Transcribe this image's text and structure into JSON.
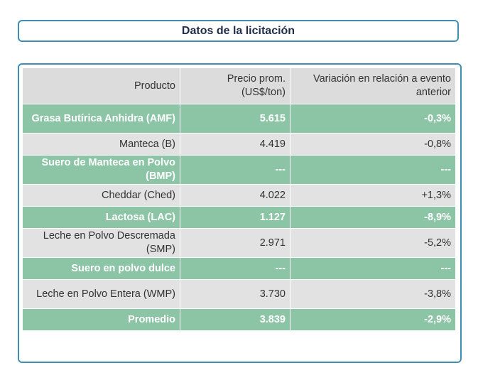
{
  "header": {
    "title": "Datos de la licitación"
  },
  "table": {
    "columns": [
      "Producto",
      "Precio prom. (US$/ton)",
      "Variación en relación a evento anterior"
    ],
    "rows": [
      {
        "product": "Grasa Butírica Anhidra (AMF)",
        "price": "5.615",
        "change": "-0,3%",
        "highlight": true
      },
      {
        "product": "Manteca (B)",
        "price": "4.419",
        "change": "-0,8%",
        "highlight": false
      },
      {
        "product": "Suero de Manteca en Polvo (BMP)",
        "price": "---",
        "change": "---",
        "highlight": true
      },
      {
        "product": "Cheddar (Ched)",
        "price": "4.022",
        "change": "+1,3%",
        "highlight": false
      },
      {
        "product": "Lactosa (LAC)",
        "price": "1.127",
        "change": "-8,9%",
        "highlight": true
      },
      {
        "product": "Leche en Polvo Descremada (SMP)",
        "price": "2.971",
        "change": "-5,2%",
        "highlight": false
      },
      {
        "product": "Suero en polvo dulce",
        "price": "---",
        "change": "---",
        "highlight": true
      },
      {
        "product": "Leche en Polvo Entera (WMP)",
        "price": "3.730",
        "change": "-3,8%",
        "highlight": false
      },
      {
        "product": "Promedio",
        "price": "3.839",
        "change": "-2,9%",
        "highlight": true
      }
    ]
  },
  "colors": {
    "highlight_row": "#8cc4a6",
    "plain_row": "#e2e2e2",
    "header_row": "#dcdcdc",
    "border": "#3f8fb0"
  }
}
